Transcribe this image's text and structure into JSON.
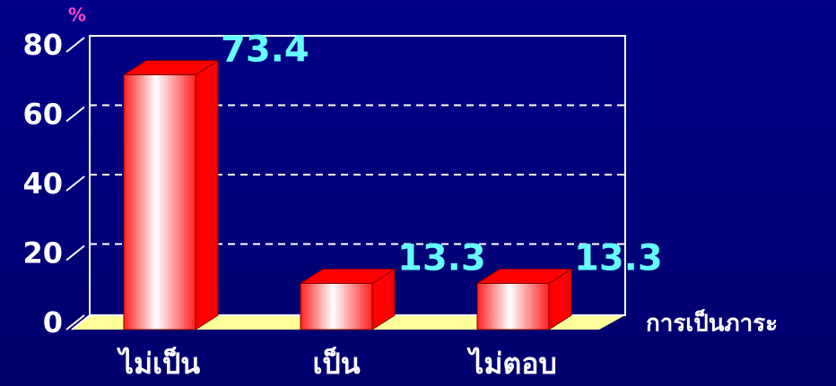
{
  "chart_data": {
    "type": "bar",
    "y_label": "%",
    "x_label": "การเป็นภาระ",
    "categories": [
      "ไม่เป็น",
      "เป็น",
      "ไม่ตอบ"
    ],
    "values": [
      73.4,
      13.3,
      13.3
    ],
    "color": "#ff0000",
    "ylim": [
      0,
      80
    ],
    "yticks": [
      0,
      20,
      40,
      60,
      80
    ],
    "grid": true
  }
}
